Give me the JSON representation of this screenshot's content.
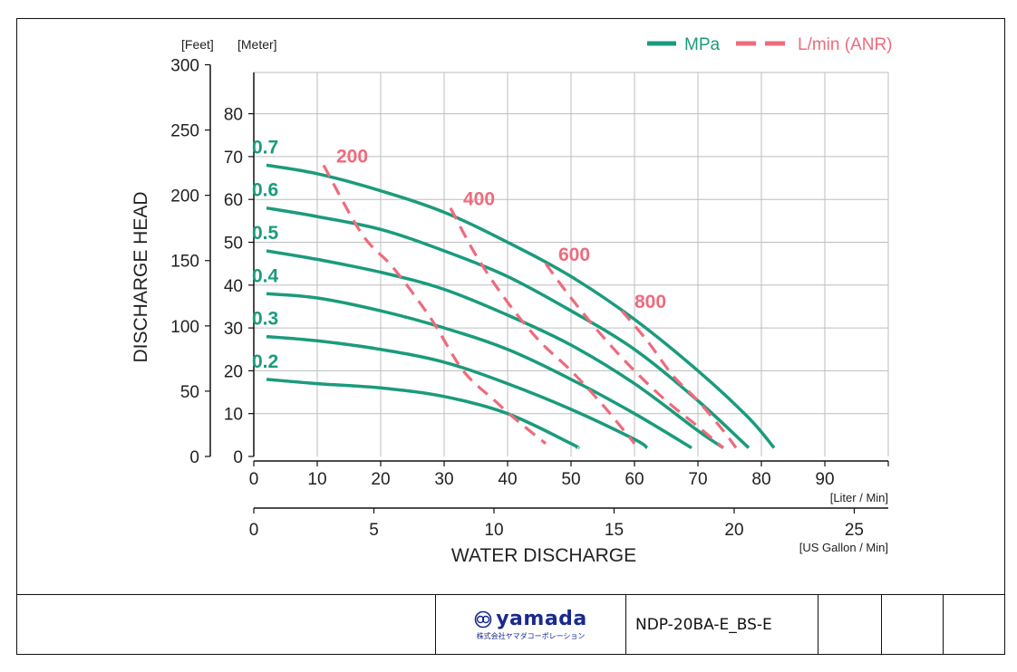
{
  "chart_data": {
    "type": "line",
    "xlabel": "WATER DISCHARGE",
    "ylabel": "DISCHARGE HEAD",
    "x_unit_primary": "[Liter / Min]",
    "x_unit_secondary": "[US Gallon / Min]",
    "y_unit_feet": "[Feet]",
    "y_unit_meter": "[Meter]",
    "xlim": [
      0,
      100
    ],
    "ylim": [
      0,
      90
    ],
    "x_ticks": [
      0,
      10,
      20,
      30,
      40,
      50,
      60,
      70,
      80,
      90
    ],
    "y_ticks_meter": [
      0,
      10,
      20,
      30,
      40,
      50,
      60,
      70,
      80
    ],
    "y_ticks_feet": [
      0,
      50,
      100,
      150,
      200,
      250,
      300
    ],
    "x_ticks_gallon": [
      0,
      5,
      10,
      15,
      20,
      25
    ],
    "grid": true,
    "legend_position": "top-right",
    "legend": [
      {
        "label": "MPa",
        "color": "#1a9b7c",
        "style": "solid"
      },
      {
        "label": "L/min (ANR)",
        "color": "#ee6b7c",
        "style": "dashed"
      }
    ],
    "series": [
      {
        "name": "0.7",
        "kind": "MPa",
        "x": [
          2,
          10,
          20,
          30,
          40,
          50,
          60,
          70,
          78,
          82
        ],
        "y": [
          68,
          66,
          62,
          57,
          50,
          42,
          32,
          20,
          9,
          2
        ]
      },
      {
        "name": "0.6",
        "kind": "MPa",
        "x": [
          2,
          10,
          20,
          30,
          40,
          50,
          60,
          70,
          78
        ],
        "y": [
          58,
          56,
          53,
          48,
          42,
          34,
          25,
          13,
          2
        ]
      },
      {
        "name": "0.5",
        "kind": "MPa",
        "x": [
          2,
          10,
          20,
          30,
          40,
          50,
          60,
          70,
          74
        ],
        "y": [
          48,
          46,
          43,
          39,
          33,
          26,
          17,
          6,
          2
        ]
      },
      {
        "name": "0.4",
        "kind": "MPa",
        "x": [
          2,
          10,
          20,
          30,
          40,
          50,
          60,
          69
        ],
        "y": [
          38,
          37,
          34,
          30,
          25,
          18,
          10,
          2
        ]
      },
      {
        "name": "0.3",
        "kind": "MPa",
        "x": [
          2,
          10,
          20,
          30,
          40,
          50,
          60,
          62
        ],
        "y": [
          28,
          27,
          25,
          22,
          17,
          11,
          4,
          2
        ]
      },
      {
        "name": "0.2",
        "kind": "MPa",
        "x": [
          2,
          10,
          20,
          30,
          40,
          50,
          51
        ],
        "y": [
          18,
          17,
          16,
          14,
          10,
          3,
          2
        ]
      },
      {
        "name": "200",
        "kind": "ANR",
        "x": [
          11,
          17,
          22,
          28,
          33,
          38,
          41,
          46
        ],
        "y": [
          68,
          52,
          44,
          32,
          20,
          13,
          9,
          3
        ]
      },
      {
        "name": "400",
        "kind": "ANR",
        "x": [
          31,
          35,
          40,
          45,
          50,
          55,
          60
        ],
        "y": [
          58,
          47,
          36,
          27,
          20,
          12,
          3
        ]
      },
      {
        "name": "600",
        "kind": "ANR",
        "x": [
          46,
          50,
          55,
          60,
          65,
          70,
          74
        ],
        "y": [
          45,
          37,
          28,
          20,
          13,
          7,
          2
        ]
      },
      {
        "name": "800",
        "kind": "ANR",
        "x": [
          58,
          62,
          66,
          70,
          74,
          76
        ],
        "y": [
          34,
          27,
          19,
          13,
          6,
          2
        ]
      }
    ]
  },
  "footer": {
    "logo_word": "yamada",
    "logo_sub": "株式会社ヤマダコーポレーション",
    "code": "NDP-20BA-E_BS-E"
  },
  "colors": {
    "mpa": "#1a9b7c",
    "anr": "#ee6b7c",
    "grid": "#bdbdbd",
    "axis": "#111111",
    "text": "#222222"
  }
}
